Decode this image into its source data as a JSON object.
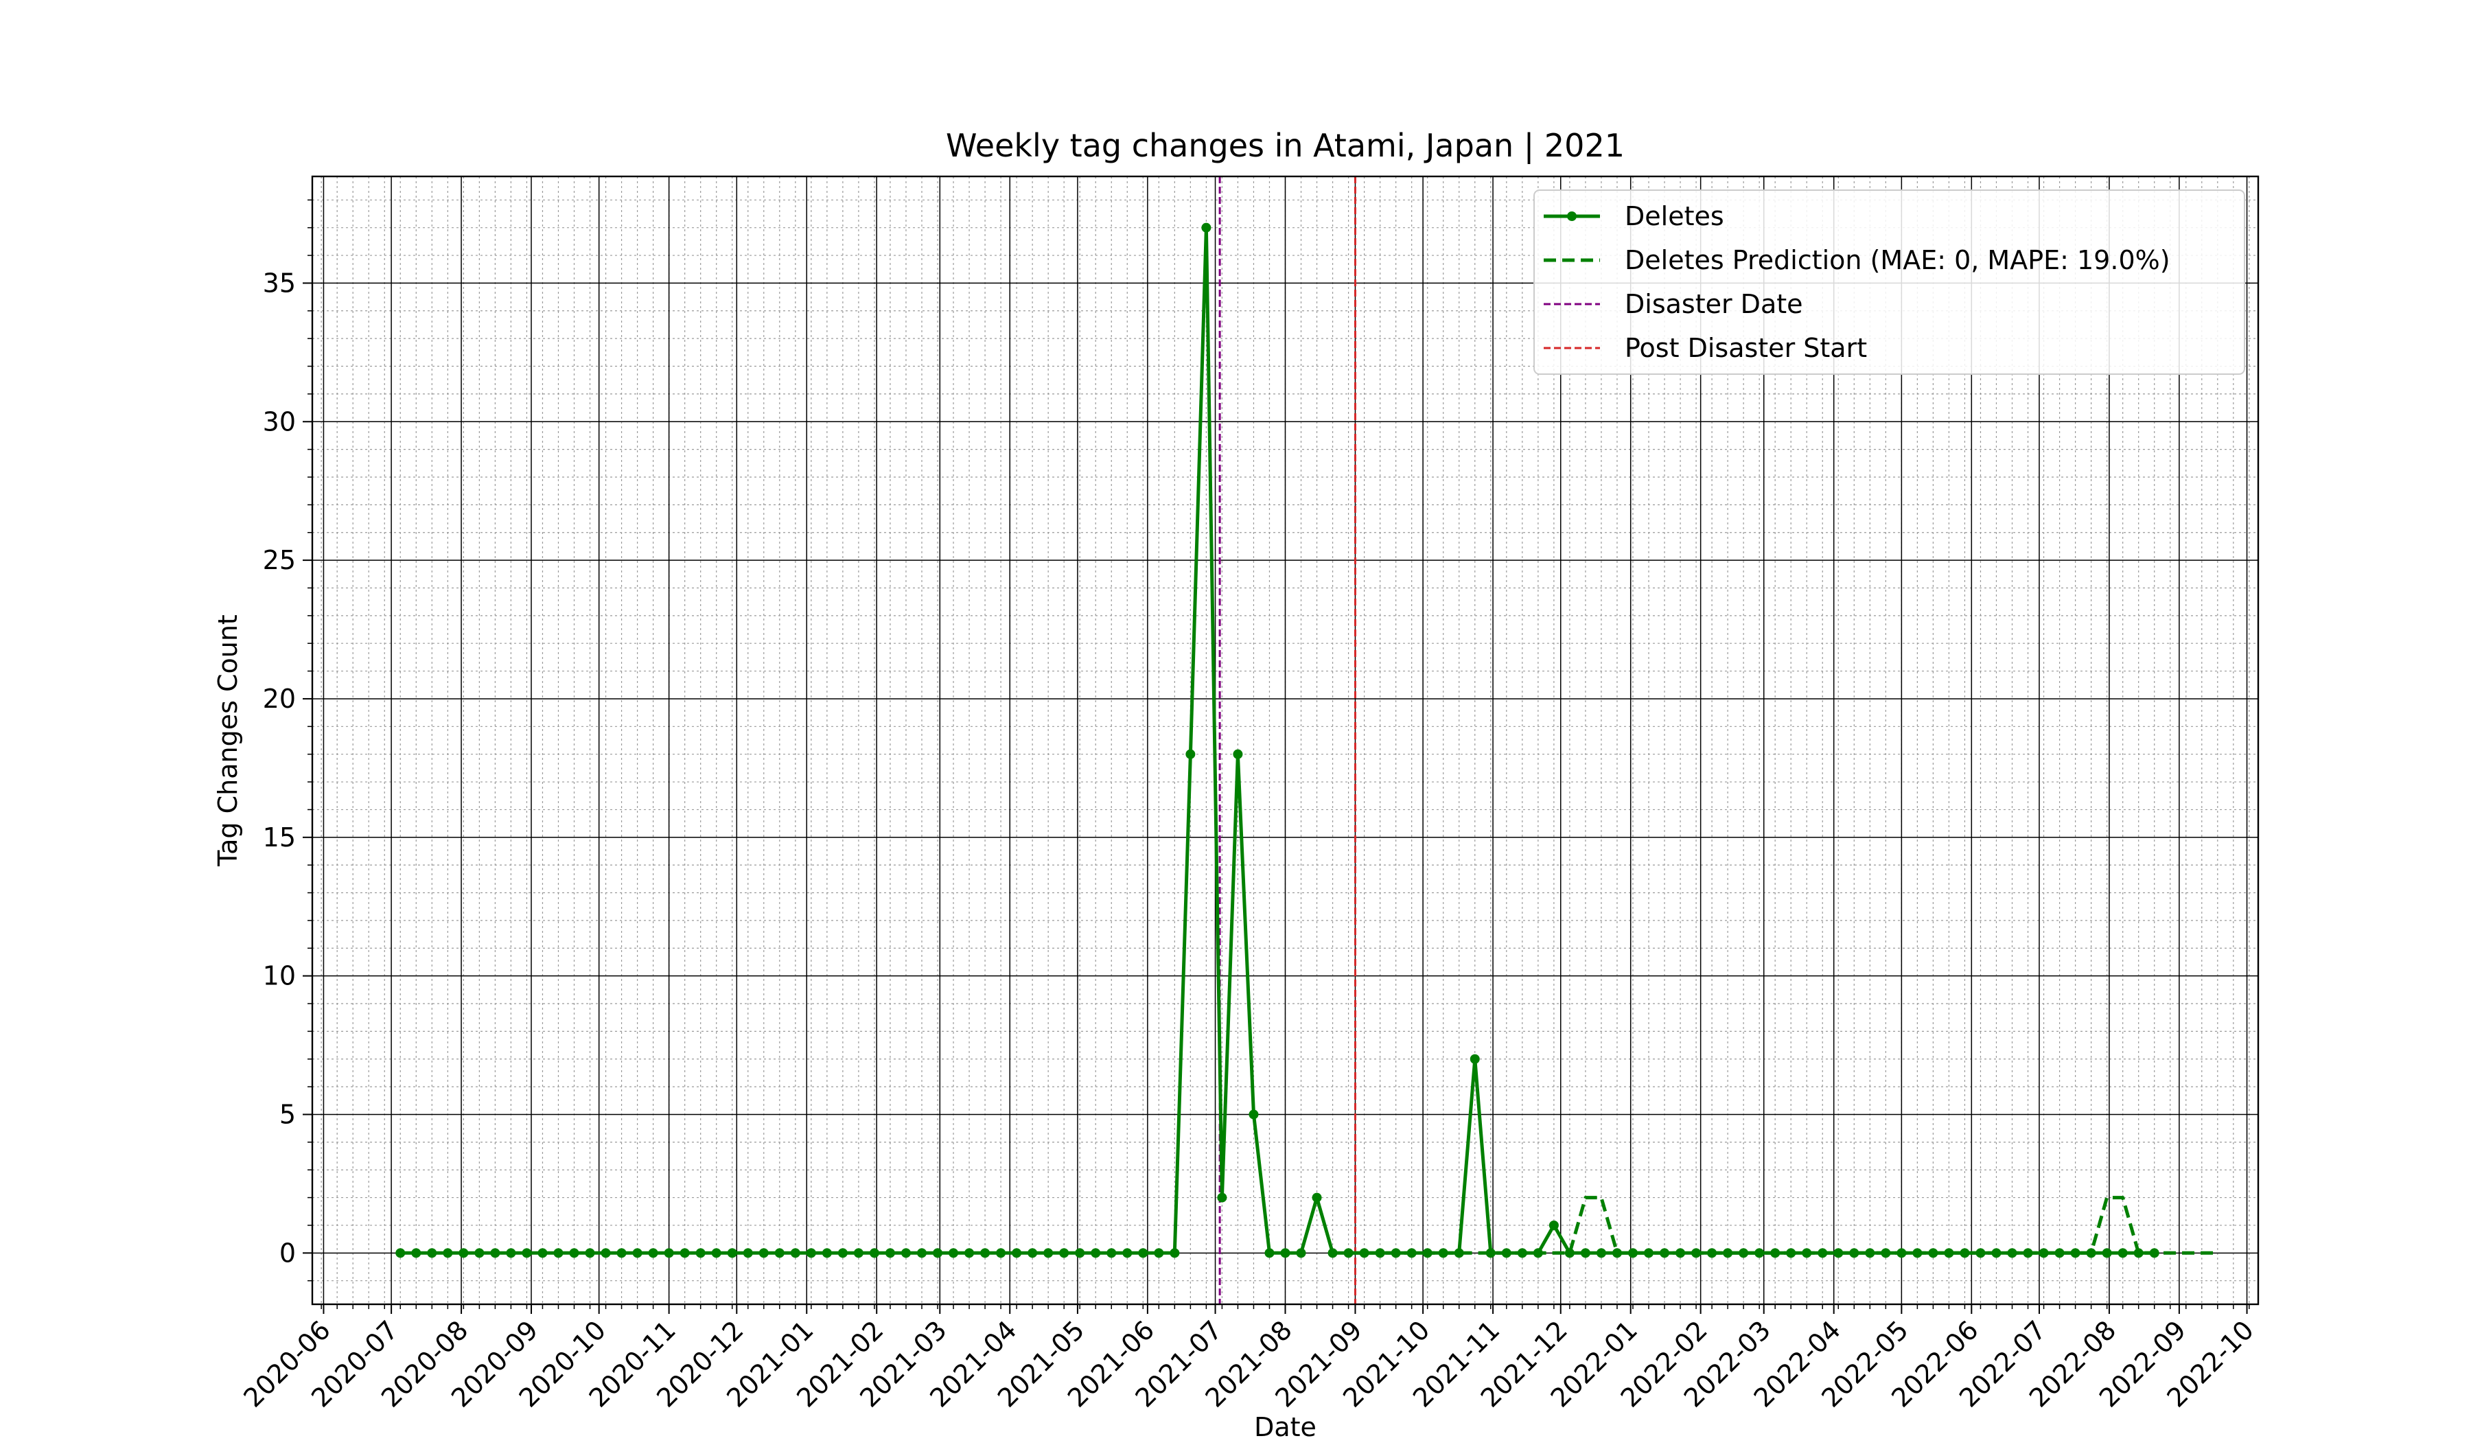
{
  "chart_data": {
    "type": "line",
    "title": "Weekly tag changes in Atami, Japan | 2021",
    "xlabel": "Date",
    "ylabel": "Tag Changes Count",
    "xlim": [
      "2020-05-27",
      "2022-10-06"
    ],
    "ylim": [
      -1.85,
      38.85
    ],
    "x_tick_labels": [
      "2020-06",
      "2020-07",
      "2020-08",
      "2020-09",
      "2020-10",
      "2020-11",
      "2020-12",
      "2021-01",
      "2021-02",
      "2021-03",
      "2021-04",
      "2021-05",
      "2021-06",
      "2021-07",
      "2021-08",
      "2021-09",
      "2021-10",
      "2021-11",
      "2021-12",
      "2022-01",
      "2022-02",
      "2022-03",
      "2022-04",
      "2022-05",
      "2022-06",
      "2022-07",
      "2022-08",
      "2022-09",
      "2022-10"
    ],
    "y_ticks": [
      0,
      5,
      10,
      15,
      20,
      25,
      30,
      35
    ],
    "grid": true,
    "legend_position": "top-right",
    "first_week": "2020-07-05",
    "series": [
      {
        "name": "Deletes",
        "style": "solid",
        "marker": "circle",
        "color": "#008000",
        "values": [
          0,
          0,
          0,
          0,
          0,
          0,
          0,
          0,
          0,
          0,
          0,
          0,
          0,
          0,
          0,
          0,
          0,
          0,
          0,
          0,
          0,
          0,
          0,
          0,
          0,
          0,
          0,
          0,
          0,
          0,
          0,
          0,
          0,
          0,
          0,
          0,
          0,
          0,
          0,
          0,
          0,
          0,
          0,
          0,
          0,
          0,
          0,
          0,
          0,
          0,
          18,
          37,
          2,
          18,
          5,
          0,
          0,
          0,
          2,
          0,
          0,
          0,
          0,
          0,
          0,
          0,
          0,
          0,
          7,
          0,
          0,
          0,
          0,
          1,
          0,
          0,
          0,
          0,
          0,
          0,
          0,
          0,
          0,
          0,
          0,
          0,
          0,
          0,
          0,
          0,
          0,
          0,
          0,
          0,
          0,
          0,
          0,
          0,
          0,
          0,
          0,
          0,
          0,
          0,
          0,
          0,
          0,
          0,
          0,
          0,
          0,
          0
        ]
      },
      {
        "name": "Deletes Prediction (MAE: 0, MAPE: 19.0%)",
        "style": "dashed",
        "color": "#008000",
        "start_week": 60,
        "values": [
          0,
          0,
          0,
          0,
          0,
          0,
          0,
          0,
          0,
          0,
          0,
          0,
          0,
          0,
          0,
          2,
          2,
          0,
          0,
          0,
          0,
          0,
          0,
          0,
          0,
          0,
          0,
          0,
          0,
          0,
          0,
          0,
          0,
          0,
          0,
          0,
          0,
          0,
          0,
          0,
          0,
          0,
          0,
          0,
          0,
          0,
          0,
          0,
          2,
          2,
          0,
          0,
          0,
          0,
          0,
          0
        ]
      }
    ],
    "vlines": [
      {
        "name": "Disaster Date",
        "x": "2021-07-03",
        "color": "#800080"
      },
      {
        "name": "Post Disaster Start",
        "x": "2021-09-01",
        "color": "#d62728"
      }
    ]
  }
}
